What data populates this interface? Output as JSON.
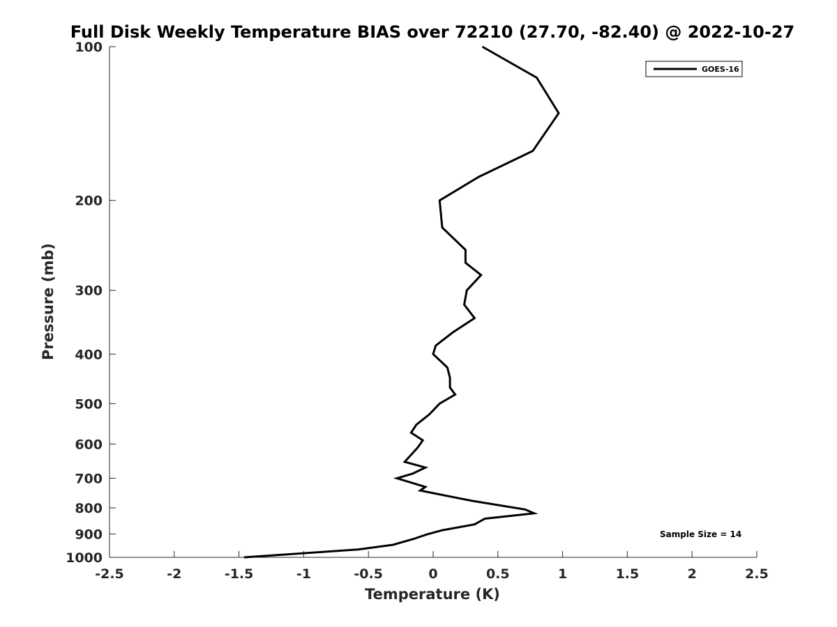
{
  "chart_data": {
    "type": "line",
    "title": "Full Disk Weekly Temperature BIAS over 72210 (27.70, -82.40) @ 2022-10-27",
    "xlabel": "Temperature (K)",
    "ylabel": "Pressure (mb)",
    "xlim": [
      -2.5,
      2.5
    ],
    "ylim": [
      1000,
      100
    ],
    "y_scale": "log",
    "y_reversed": true,
    "x_ticks": [
      "-2.5",
      "-2",
      "-1.5",
      "-1",
      "-0.5",
      "0",
      "0.5",
      "1",
      "1.5",
      "2",
      "2.5"
    ],
    "y_ticks": [
      "100",
      "200",
      "300",
      "400",
      "500",
      "600",
      "700",
      "800",
      "900",
      "1000"
    ],
    "grid": false,
    "legend_position": "top-right",
    "annotation": "Sample Size = 14",
    "series": [
      {
        "name": "GOES-16",
        "color": "#000000",
        "points": [
          [
            0.38,
            100
          ],
          [
            0.8,
            115
          ],
          [
            0.97,
            135
          ],
          [
            0.77,
            160
          ],
          [
            0.35,
            180
          ],
          [
            0.05,
            200
          ],
          [
            0.07,
            226
          ],
          [
            0.25,
            250
          ],
          [
            0.25,
            265
          ],
          [
            0.37,
            280
          ],
          [
            0.26,
            300
          ],
          [
            0.24,
            320
          ],
          [
            0.32,
            340
          ],
          [
            0.15,
            363
          ],
          [
            0.02,
            385
          ],
          [
            0.0,
            400
          ],
          [
            0.11,
            425
          ],
          [
            0.13,
            445
          ],
          [
            0.13,
            465
          ],
          [
            0.17,
            480
          ],
          [
            0.05,
            500
          ],
          [
            -0.03,
            525
          ],
          [
            -0.13,
            550
          ],
          [
            -0.17,
            570
          ],
          [
            -0.08,
            590
          ],
          [
            -0.12,
            610
          ],
          [
            -0.22,
            650
          ],
          [
            -0.06,
            667
          ],
          [
            -0.16,
            686
          ],
          [
            -0.28,
            700
          ],
          [
            -0.06,
            728
          ],
          [
            -0.1,
            740
          ],
          [
            0.3,
            775
          ],
          [
            0.71,
            806
          ],
          [
            0.78,
            820
          ],
          [
            0.4,
            840
          ],
          [
            0.32,
            862
          ],
          [
            0.07,
            885
          ],
          [
            -0.05,
            902
          ],
          [
            -0.15,
            920
          ],
          [
            -0.31,
            945
          ],
          [
            -0.58,
            965
          ],
          [
            -1.46,
            1000
          ]
        ]
      }
    ]
  }
}
